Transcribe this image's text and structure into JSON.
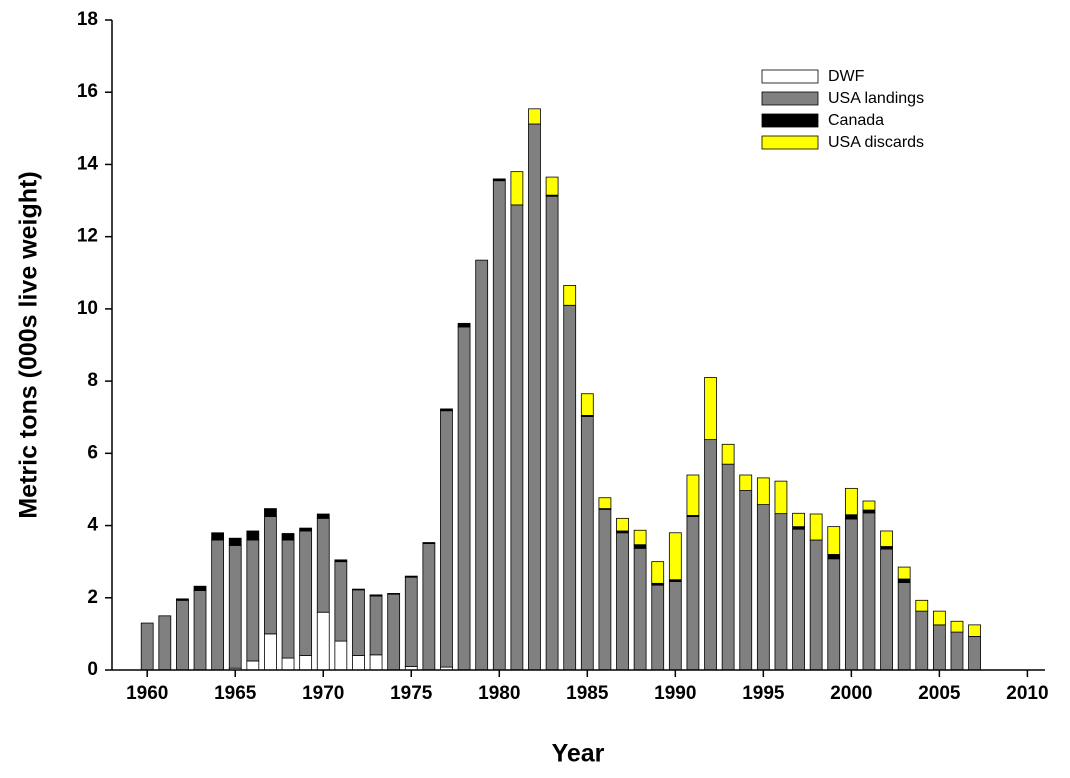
{
  "chart_data": {
    "type": "stacked_bar",
    "xlabel": "Year",
    "ylabel": "Metric tons (000s live weight)",
    "x": [
      1960,
      1961,
      1962,
      1963,
      1964,
      1965,
      1966,
      1967,
      1968,
      1969,
      1970,
      1971,
      1972,
      1973,
      1974,
      1975,
      1976,
      1977,
      1978,
      1979,
      1980,
      1981,
      1982,
      1983,
      1984,
      1985,
      1986,
      1987,
      1988,
      1989,
      1990,
      1991,
      1992,
      1993,
      1994,
      1995,
      1996,
      1997,
      1998,
      1999,
      2000,
      2001,
      2002,
      2003,
      2004,
      2005,
      2006,
      2007
    ],
    "series": [
      {
        "name": "DWF",
        "color": "#ffffff",
        "values": [
          0,
          0,
          0,
          0,
          0,
          0.05,
          0.25,
          1.0,
          0.33,
          0.4,
          1.6,
          0.8,
          0.4,
          0.42,
          0,
          0.1,
          0,
          0.08,
          0,
          0,
          0,
          0,
          0,
          0,
          0,
          0,
          0,
          0,
          0,
          0,
          0,
          0,
          0,
          0,
          0,
          0,
          0,
          0,
          0,
          0,
          0,
          0,
          0,
          0,
          0,
          0,
          0,
          0
        ]
      },
      {
        "name": "USA landings",
        "color": "#808080",
        "values": [
          1.3,
          1.5,
          1.93,
          2.2,
          3.6,
          3.4,
          3.35,
          3.25,
          3.27,
          3.45,
          2.6,
          2.2,
          1.82,
          1.63,
          2.1,
          2.47,
          3.5,
          7.1,
          9.5,
          11.35,
          13.55,
          12.88,
          15.12,
          13.12,
          10.1,
          7.02,
          4.45,
          3.8,
          3.37,
          2.35,
          2.45,
          4.25,
          6.38,
          5.7,
          4.97,
          4.58,
          4.33,
          3.9,
          3.6,
          3.08,
          4.18,
          4.35,
          3.35,
          2.42,
          1.63,
          1.25,
          1.05,
          0.93
        ]
      },
      {
        "name": "Canada",
        "color": "#000000",
        "values": [
          0,
          0,
          0.04,
          0.12,
          0.2,
          0.2,
          0.25,
          0.22,
          0.18,
          0.08,
          0.12,
          0.05,
          0.02,
          0.03,
          0.02,
          0.03,
          0.03,
          0.05,
          0.1,
          0,
          0.05,
          0,
          0,
          0.03,
          0,
          0.03,
          0.02,
          0.05,
          0.1,
          0.05,
          0.05,
          0.03,
          0,
          0,
          0,
          0,
          0,
          0.07,
          0,
          0.12,
          0.12,
          0.08,
          0.07,
          0.1,
          0,
          0,
          0,
          0
        ]
      },
      {
        "name": "USA discards",
        "color": "#ffff00",
        "values": [
          0,
          0,
          0,
          0,
          0,
          0,
          0,
          0,
          0,
          0,
          0,
          0,
          0,
          0,
          0,
          0,
          0,
          0,
          0,
          0,
          0,
          0.92,
          0.42,
          0.5,
          0.55,
          0.6,
          0.3,
          0.35,
          0.4,
          0.6,
          1.3,
          1.12,
          1.72,
          0.55,
          0.43,
          0.74,
          0.9,
          0.37,
          0.72,
          0.77,
          0.73,
          0.25,
          0.43,
          0.33,
          0.3,
          0.38,
          0.3,
          0.32
        ]
      }
    ],
    "xlim": [
      1958,
      2011
    ],
    "xticks": [
      1960,
      1965,
      1970,
      1975,
      1980,
      1985,
      1990,
      1995,
      2000,
      2005,
      2010
    ],
    "ylim": [
      0,
      18
    ],
    "yticks": [
      0,
      2,
      4,
      6,
      8,
      10,
      12,
      14,
      16,
      18
    ],
    "legend": "upper right"
  }
}
